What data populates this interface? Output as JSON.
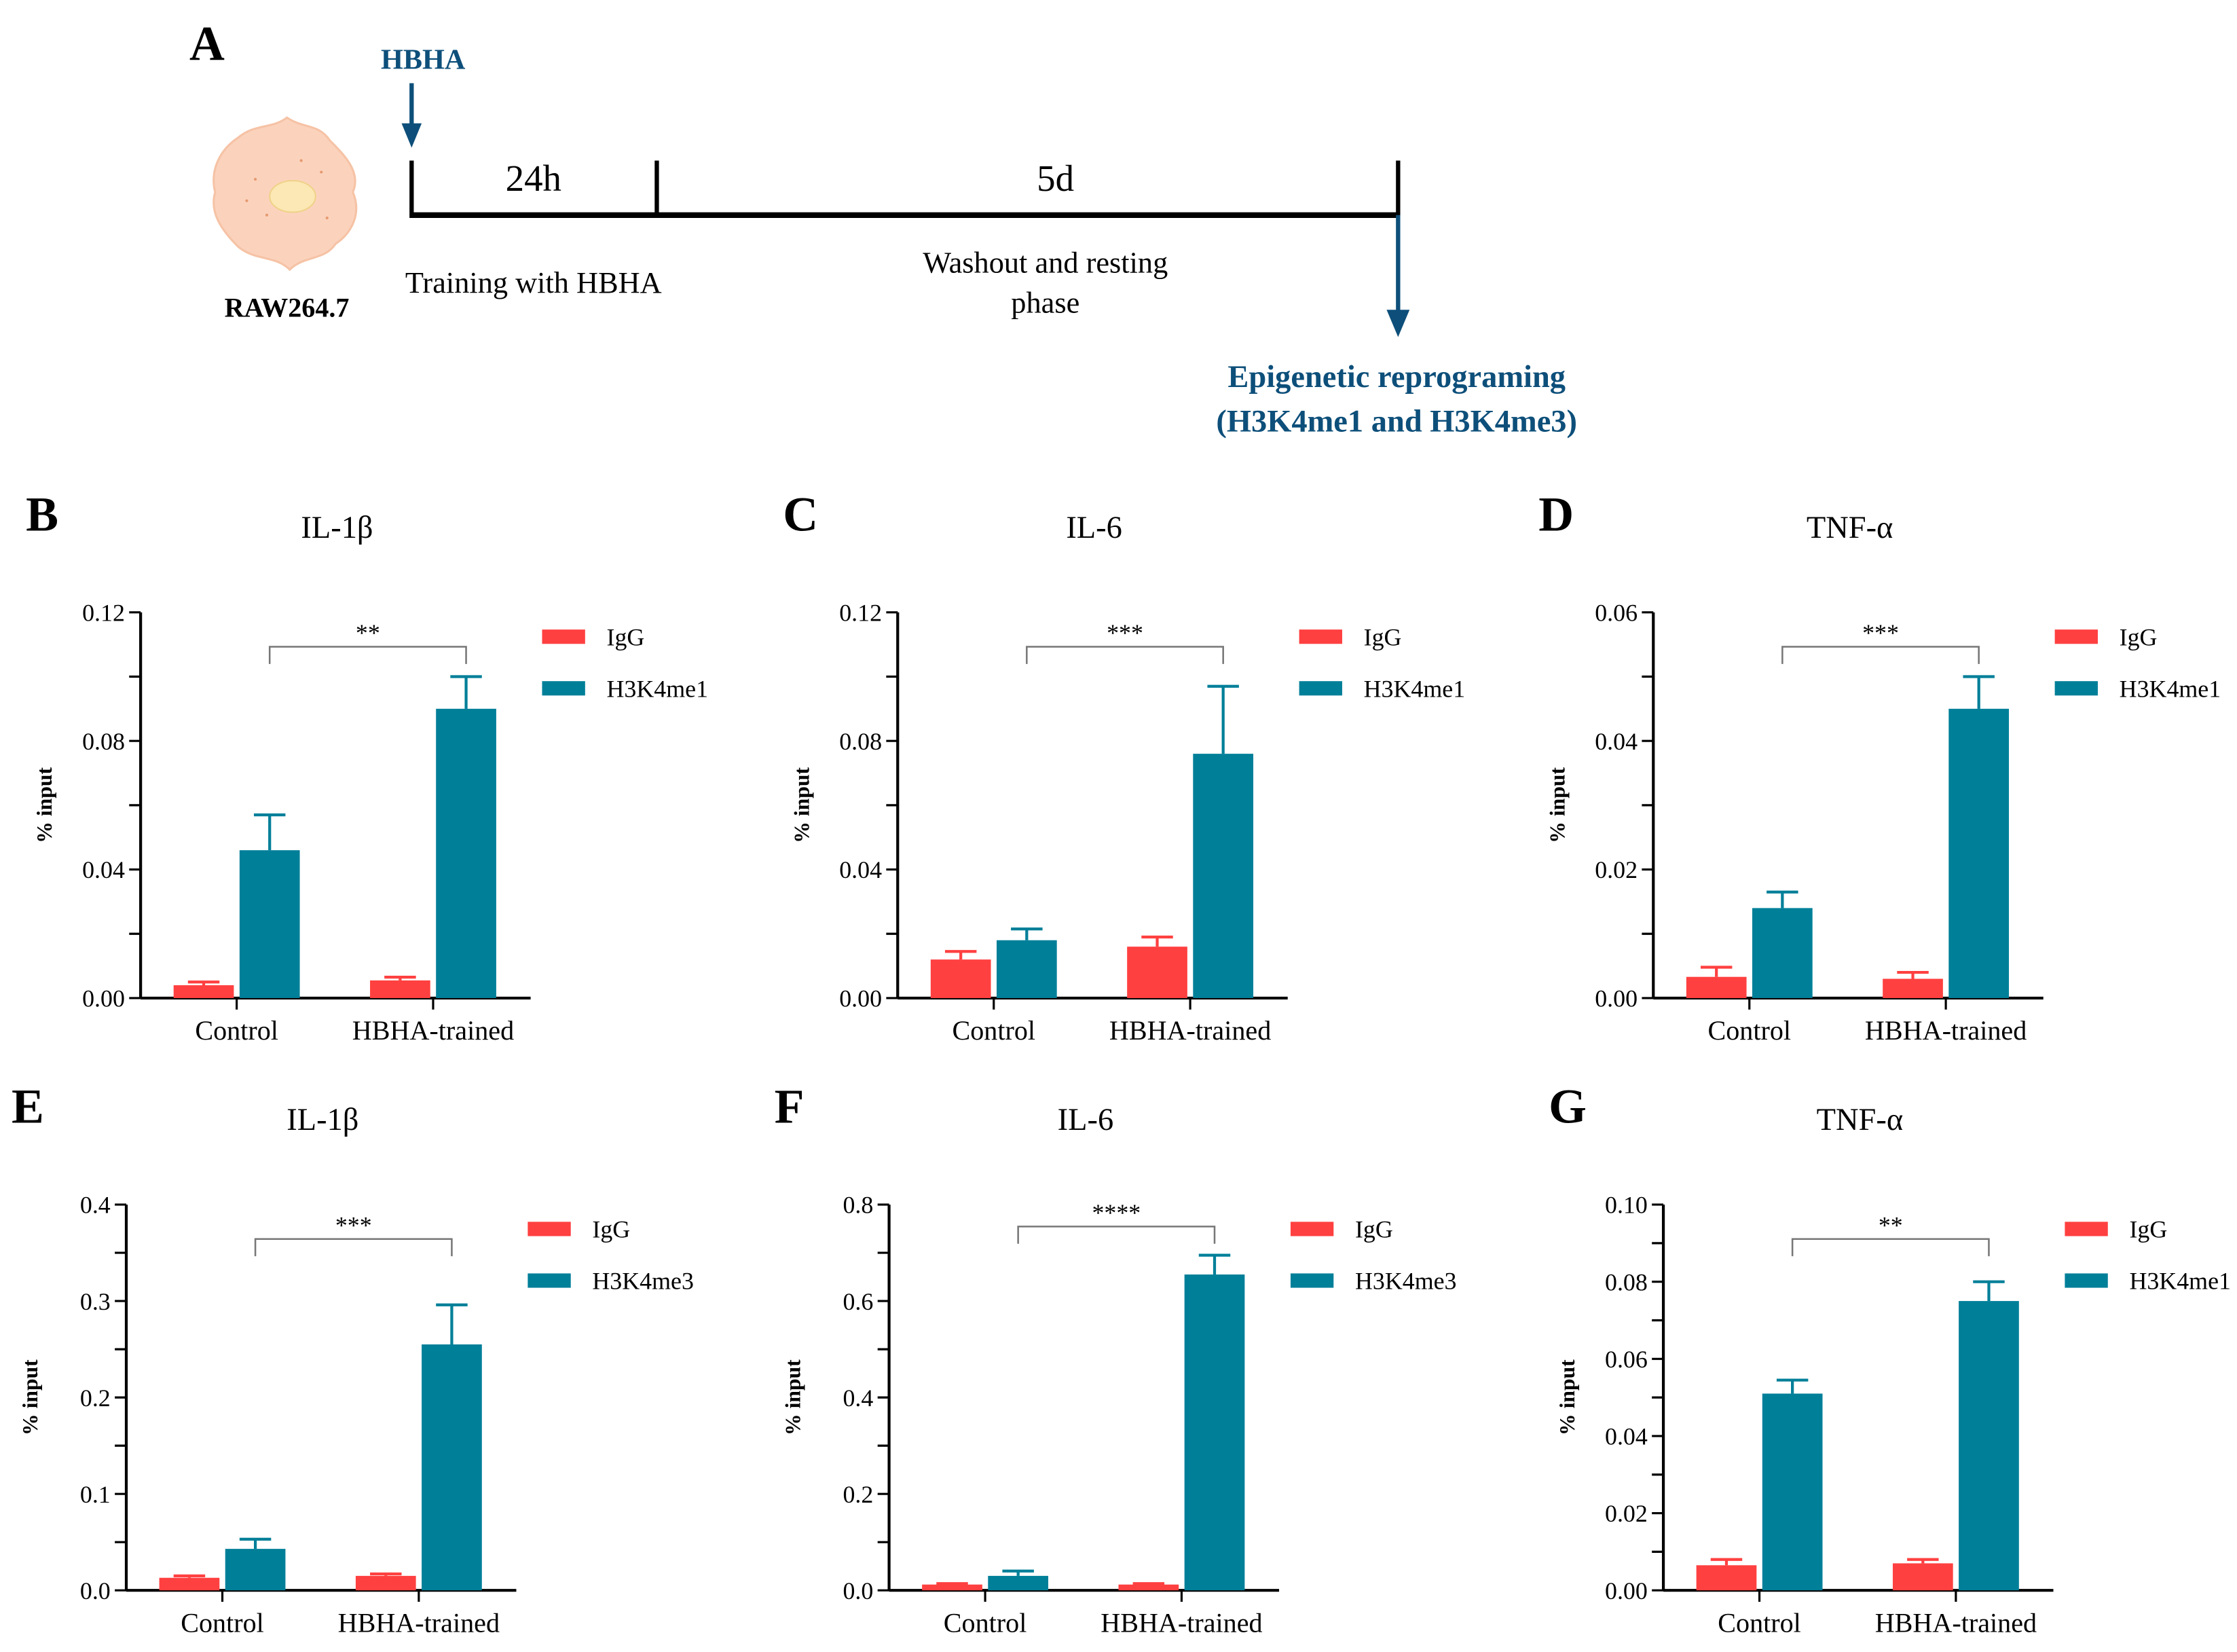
{
  "panel_a": {
    "letter": "A",
    "stimulus": "HBHA",
    "cell_label": "RAW264.7",
    "phase1_duration": "24h",
    "phase1_label": "Training with HBHA",
    "phase2_duration": "5d",
    "phase2_label_line1": "Washout and resting",
    "phase2_label_line2": "phase",
    "outcome_line1": "Epigenetic reprograming",
    "outcome_line2": "(H3K4me1 and H3K4me3)",
    "accent_color": "#0d4f7a"
  },
  "colors": {
    "IgG": "#ff4040",
    "mark": "#007f99"
  },
  "chart_data": [
    {
      "panel": "B",
      "type": "bar",
      "title": "IL-1β",
      "ylabel": "% input",
      "categories": [
        "Control",
        "HBHA-trained"
      ],
      "ylim": [
        0,
        0.12
      ],
      "yticks": [
        "0.00",
        "0.04",
        "0.08",
        "0.12"
      ],
      "tick_step": 0.04,
      "series": [
        {
          "name": "IgG",
          "values": [
            0.004,
            0.0055
          ],
          "errors": [
            0.001,
            0.001
          ]
        },
        {
          "name": "H3K4me1",
          "values": [
            0.046,
            0.09
          ],
          "errors": [
            0.011,
            0.01
          ]
        }
      ],
      "significance": "**"
    },
    {
      "panel": "C",
      "type": "bar",
      "title": "IL-6",
      "ylabel": "% input",
      "categories": [
        "Control",
        "HBHA-trained"
      ],
      "ylim": [
        0,
        0.12
      ],
      "yticks": [
        "0.00",
        "0.04",
        "0.08",
        "0.12"
      ],
      "tick_step": 0.04,
      "series": [
        {
          "name": "IgG",
          "values": [
            0.012,
            0.016
          ],
          "errors": [
            0.0025,
            0.003
          ]
        },
        {
          "name": "H3K4me1",
          "values": [
            0.018,
            0.076
          ],
          "errors": [
            0.0035,
            0.021
          ]
        }
      ],
      "significance": "***"
    },
    {
      "panel": "D",
      "type": "bar",
      "title": "TNF-α",
      "ylabel": "% input",
      "categories": [
        "Control",
        "HBHA-trained"
      ],
      "ylim": [
        0,
        0.06
      ],
      "yticks": [
        "0.00",
        "0.02",
        "0.04",
        "0.06"
      ],
      "tick_step": 0.02,
      "series": [
        {
          "name": "IgG",
          "values": [
            0.0033,
            0.003
          ],
          "errors": [
            0.0015,
            0.001
          ]
        },
        {
          "name": "H3K4me1",
          "values": [
            0.014,
            0.045
          ],
          "errors": [
            0.0025,
            0.005
          ]
        }
      ],
      "significance": "***"
    },
    {
      "panel": "E",
      "type": "bar",
      "title": "IL-1β",
      "ylabel": "% input",
      "categories": [
        "Control",
        "HBHA-trained"
      ],
      "ylim": [
        0,
        0.4
      ],
      "yticks": [
        "0.0",
        "0.1",
        "0.2",
        "0.3",
        "0.4"
      ],
      "tick_step": 0.1,
      "series": [
        {
          "name": "IgG",
          "values": [
            0.013,
            0.015
          ],
          "errors": [
            0.002,
            0.002
          ]
        },
        {
          "name": "H3K4me3",
          "values": [
            0.043,
            0.255
          ],
          "errors": [
            0.01,
            0.041
          ]
        }
      ],
      "significance": "***"
    },
    {
      "panel": "F",
      "type": "bar",
      "title": "IL-6",
      "ylabel": "% input",
      "categories": [
        "Control",
        "HBHA-trained"
      ],
      "ylim": [
        0,
        0.8
      ],
      "yticks": [
        "0.0",
        "0.2",
        "0.4",
        "0.6",
        "0.8"
      ],
      "tick_step": 0.2,
      "series": [
        {
          "name": "IgG",
          "values": [
            0.012,
            0.012
          ],
          "errors": [
            0.002,
            0.002
          ]
        },
        {
          "name": "H3K4me3",
          "values": [
            0.03,
            0.655
          ],
          "errors": [
            0.01,
            0.04
          ]
        }
      ],
      "significance": "****"
    },
    {
      "panel": "G",
      "type": "bar",
      "title": "TNF-α",
      "ylabel": "% input",
      "categories": [
        "Control",
        "HBHA-trained"
      ],
      "ylim": [
        0,
        0.1
      ],
      "yticks": [
        "0.00",
        "0.02",
        "0.04",
        "0.06",
        "0.08",
        "0.10"
      ],
      "tick_step": 0.02,
      "series": [
        {
          "name": "IgG",
          "values": [
            0.0065,
            0.007
          ],
          "errors": [
            0.0015,
            0.001
          ]
        },
        {
          "name": "H3K4me1",
          "values": [
            0.051,
            0.075
          ],
          "errors": [
            0.0035,
            0.005
          ]
        }
      ],
      "significance": "**"
    }
  ]
}
